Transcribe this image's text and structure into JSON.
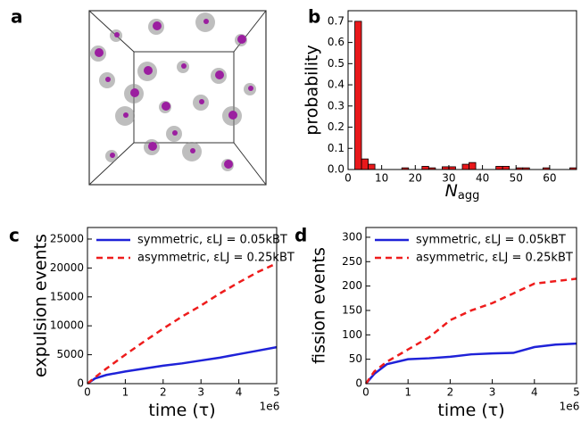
{
  "chart_data": [
    {
      "type": "image",
      "panel": "a"
    },
    {
      "type": "histogram",
      "panel": "b",
      "ylabel": "probability",
      "xlabel": "N",
      "xlabel_sub": "agg",
      "color": "#e8181b",
      "bins": [
        2,
        4,
        6,
        8,
        10,
        12,
        14,
        16,
        18,
        20,
        22,
        24,
        26,
        28,
        30,
        32,
        34,
        36,
        38,
        40,
        42,
        44,
        46,
        48,
        50,
        52,
        54,
        56,
        58,
        60,
        62,
        64,
        66,
        68
      ],
      "values": [
        0.7,
        0.05,
        0.025,
        0,
        0,
        0,
        0,
        0.008,
        0,
        0,
        0.015,
        0.008,
        0,
        0.013,
        0.013,
        0,
        0.025,
        0.033,
        0,
        0,
        0,
        0.015,
        0.015,
        0,
        0.008,
        0.008,
        0,
        0,
        0.008,
        0,
        0,
        0,
        0.008
      ],
      "xlim": [
        0,
        68
      ],
      "xticks": [
        0,
        10,
        20,
        30,
        40,
        50,
        60
      ],
      "ylim": [
        0,
        0.75
      ],
      "yticks": [
        {
          "value": 0,
          "label": "0.0"
        },
        0.1,
        0.2,
        0.3,
        0.4,
        0.5,
        0.6,
        0.7
      ],
      "grid": false
    },
    {
      "type": "line",
      "panel": "c",
      "ylabel": "expulsion events",
      "xlabel": "time (τ)",
      "x_offset_label": "1e6",
      "x": [
        0,
        0.2,
        0.5,
        1,
        1.5,
        2,
        2.5,
        3,
        3.5,
        4,
        4.5,
        5
      ],
      "series": [
        {
          "name": "symmetric, εLJ = 0.05kBT",
          "color": "#1f22d8",
          "dash": false,
          "values": [
            0,
            900,
            1500,
            2100,
            2600,
            3100,
            3500,
            4000,
            4500,
            5100,
            5700,
            6300
          ]
        },
        {
          "name": "asymmetric, εLJ = 0.25kBT",
          "color": "#ee1c1c",
          "dash": true,
          "values": [
            0,
            1100,
            2600,
            5000,
            7300,
            9500,
            11600,
            13500,
            15600,
            17500,
            19300,
            20800
          ]
        }
      ],
      "xlim": [
        0,
        5
      ],
      "xticks": [
        0,
        1,
        2,
        3,
        4,
        5
      ],
      "ylim": [
        0,
        27000
      ],
      "yticks": [
        0,
        5000,
        10000,
        15000,
        20000,
        25000
      ],
      "grid": false,
      "legend": "upper-left"
    },
    {
      "type": "line",
      "panel": "d",
      "ylabel": "fission events",
      "xlabel": "time (τ)",
      "x_offset_label": "1e6",
      "x": [
        0,
        0.2,
        0.5,
        1,
        1.5,
        2,
        2.5,
        3,
        3.5,
        4,
        4.5,
        5
      ],
      "series": [
        {
          "name": "symmetric, εLJ = 0.05kBT",
          "color": "#1f22d8",
          "dash": false,
          "values": [
            0,
            20,
            40,
            50,
            52,
            55,
            60,
            62,
            63,
            75,
            80,
            82
          ]
        },
        {
          "name": "asymmetric, εLJ = 0.25kBT",
          "color": "#ee1c1c",
          "dash": true,
          "values": [
            0,
            25,
            45,
            70,
            95,
            130,
            150,
            165,
            185,
            205,
            210,
            215
          ]
        }
      ],
      "xlim": [
        0,
        5
      ],
      "xticks": [
        0,
        1,
        2,
        3,
        4,
        5
      ],
      "ylim": [
        0,
        320
      ],
      "yticks": [
        0,
        50,
        100,
        150,
        200,
        250,
        300
      ],
      "grid": false,
      "legend": "upper-left"
    }
  ]
}
